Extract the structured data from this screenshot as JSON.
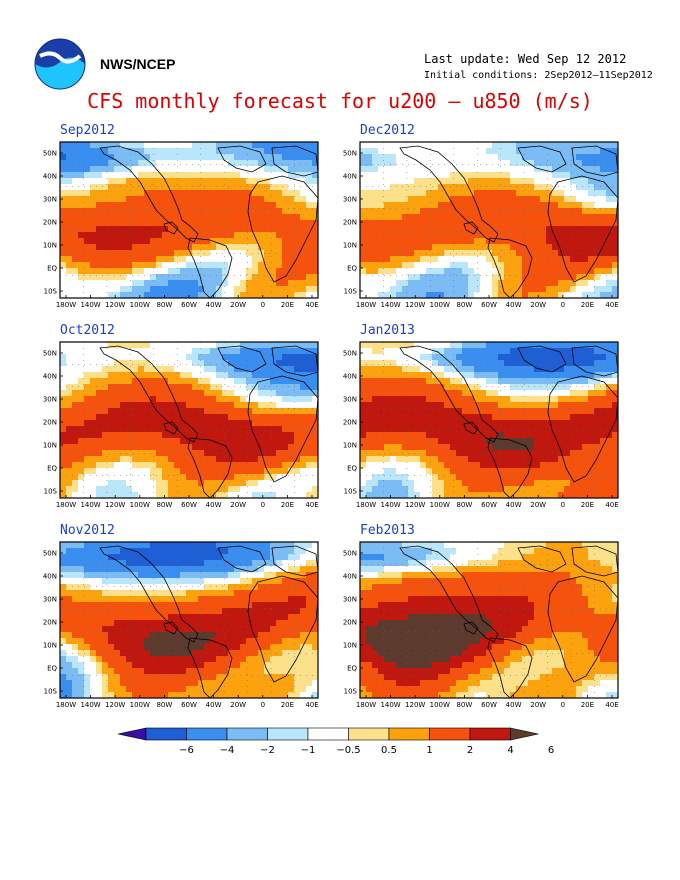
{
  "header": {
    "org": "NWS/NCEP",
    "last_update": "Last update: Wed Sep 12 2012",
    "initial_conditions": "Initial conditions: 2Sep2012–11Sep2012",
    "title": "CFS monthly forecast for u200 – u850 (m/s)"
  },
  "logo": {
    "icon": "noaa-logo-icon"
  },
  "axes": {
    "lon_labels": [
      "180W",
      "140W",
      "120W",
      "100W",
      "80W",
      "60W",
      "40W",
      "20W",
      "0",
      "20E",
      "40E"
    ],
    "lat_labels": [
      "50N",
      "40N",
      "30N",
      "20N",
      "10N",
      "EQ",
      "10S"
    ]
  },
  "panels": [
    {
      "id": "sep2012",
      "label": "Sep2012"
    },
    {
      "id": "dec2012",
      "label": "Dec2012"
    },
    {
      "id": "oct2012",
      "label": "Oct2012"
    },
    {
      "id": "jan2013",
      "label": "Jan2013"
    },
    {
      "id": "nov2012",
      "label": "Nov2012"
    },
    {
      "id": "feb2013",
      "label": "Feb2013"
    }
  ],
  "colorbar": {
    "labels": [
      "−6",
      "−4",
      "−2",
      "−1",
      "−0.5",
      "0.5",
      "1",
      "2",
      "4",
      "6"
    ],
    "colors": [
      "#3a0fa3",
      "#1e5fd6",
      "#3a8ef0",
      "#7bbcf5",
      "#b9e6fa",
      "#ffffff",
      "#fde08a",
      "#fca20f",
      "#f5520e",
      "#c0180e",
      "#5c3a2e"
    ]
  },
  "chart_data": {
    "type": "heatmap",
    "variable": "u200 – u850 (m/s)",
    "colorbar_levels": [
      -6,
      -4,
      -2,
      -1,
      -0.5,
      0.5,
      1,
      2,
      4,
      6
    ],
    "months": [
      "Sep2012",
      "Dec2012",
      "Oct2012",
      "Jan2013",
      "Nov2012",
      "Feb2013"
    ]
  }
}
